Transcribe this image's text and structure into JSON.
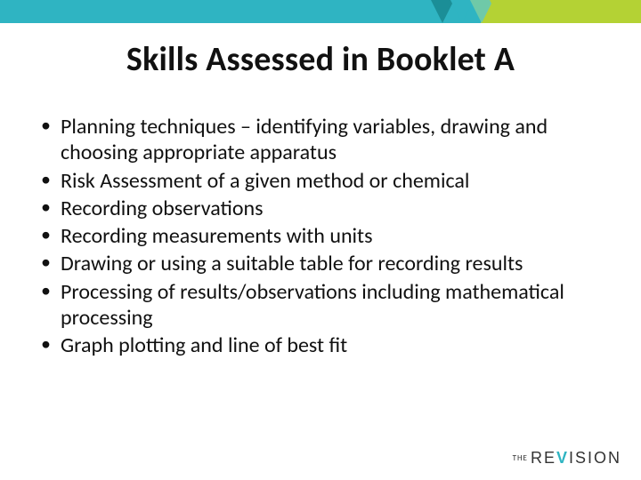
{
  "colors": {
    "teal": "#2fb4c2",
    "lime": "#b4d234",
    "chevron1": "#1b8e97",
    "chevron2": "#2fb4c2",
    "chevron3": "#6fc9a8",
    "chevron4": "#b4d234",
    "text": "#111111",
    "logo_text": "#333333",
    "logo_accent": "#2fb4c2"
  },
  "title": "Skills Assessed in Booklet A",
  "bullets": [
    "Planning techniques – identifying variables, drawing and choosing appropriate apparatus",
    "Risk Assessment of a given method or chemical",
    "Recording observations",
    "Recording measurements with units",
    "Drawing or using a suitable table for recording results",
    "Processing of results/observations including mathematical processing",
    "Graph plotting and line of best fit"
  ],
  "logo": {
    "prefix": "THE",
    "pre_accent": "RE",
    "accent": "V",
    "post_accent": "ISION"
  }
}
